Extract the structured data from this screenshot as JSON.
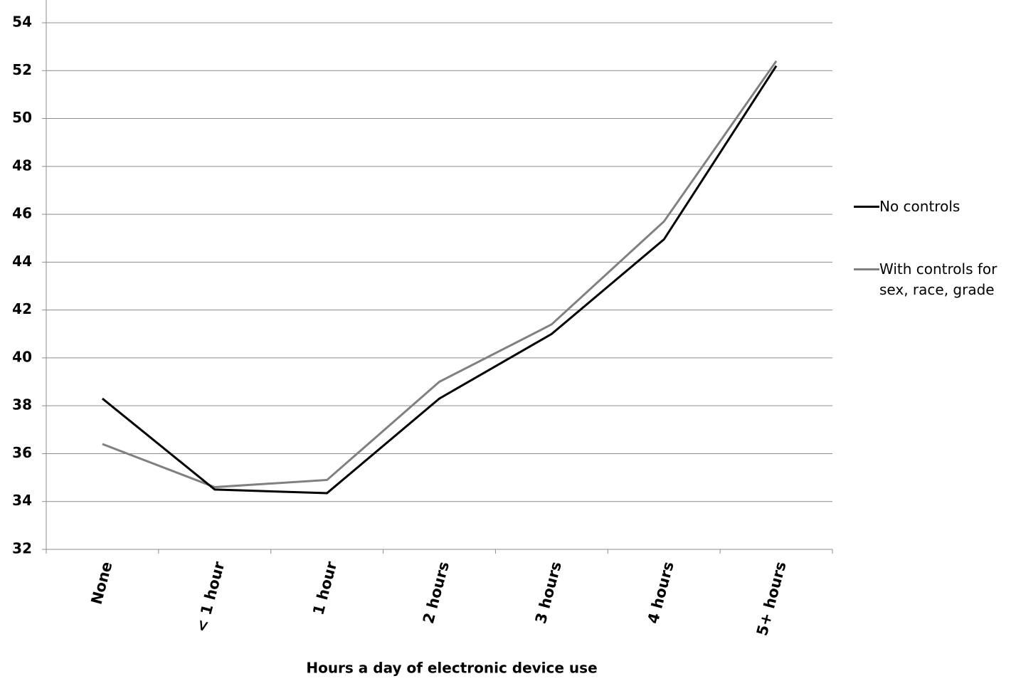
{
  "chart_data": {
    "type": "line",
    "x_label": "Hours a day of electronic device use",
    "categories": [
      "None",
      "< 1 hour",
      "1 hour",
      "2 hours",
      "3 hours",
      "4 hours",
      "5+ hours"
    ],
    "series": [
      {
        "name": "No controls",
        "color": "#000000",
        "values": [
          38.3,
          34.5,
          34.35,
          38.3,
          41.0,
          44.95,
          52.2
        ]
      },
      {
        "name": "With controls for sex, race, grade",
        "color": "#808080",
        "values": [
          36.4,
          34.6,
          34.9,
          39.0,
          41.4,
          45.7,
          52.4
        ]
      }
    ],
    "ylim": [
      32,
      55
    ],
    "yticks": [
      32,
      34,
      36,
      38,
      40,
      42,
      44,
      46,
      48,
      50,
      52,
      54
    ],
    "grid": true,
    "legend": "right"
  }
}
